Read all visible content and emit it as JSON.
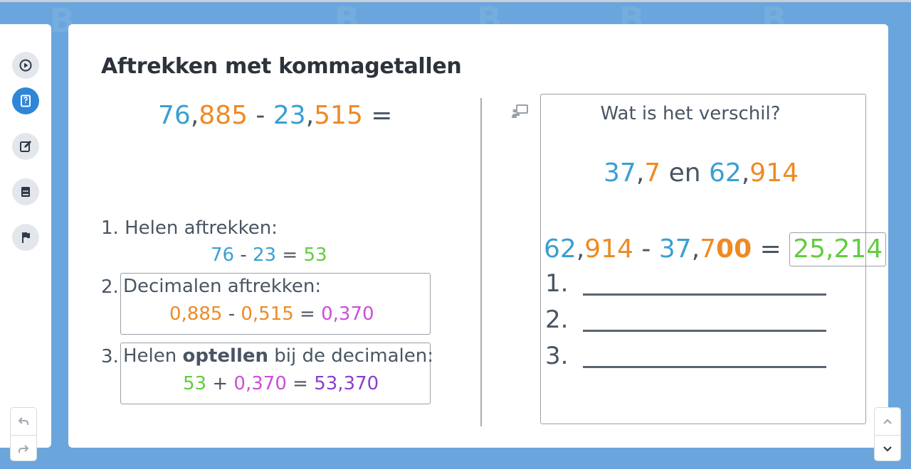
{
  "title": "Aftrekken met kommagetallen",
  "main_equation": {
    "a_int": "76",
    "a_comma": ",",
    "a_dec": "885",
    "minus": " - ",
    "b_int": "23",
    "b_comma": ",",
    "b_dec": "515",
    "equals": " ="
  },
  "steps": [
    {
      "label": "1. Helen aftrekken:",
      "eq": {
        "a": "76",
        "op": " - ",
        "b": "23",
        "eq": " = ",
        "r": "53"
      }
    },
    {
      "num": "2.",
      "label": "Decimalen aftrekken:",
      "eq": {
        "a": "0,885",
        "op": " - ",
        "b": "0,515",
        "eq": " = ",
        "r": "0,370"
      }
    },
    {
      "num": "3.",
      "label_pre": "Helen ",
      "label_bold": "optellen",
      "label_post": " bij de decimalen:",
      "eq": {
        "a": "53",
        "op": " + ",
        "b": "0,370",
        "eq": " = ",
        "r": "53,370"
      }
    }
  ],
  "question": {
    "title": "Wat is het verschil?",
    "n1_int": "37",
    "comma": ",",
    "n1_dec": "7",
    "and": " en ",
    "n2_int": "62",
    "n2_dec": "914",
    "eq": {
      "a_int": "62",
      "a_dec": "914",
      "minus": " - ",
      "b_int": "37",
      "b_dec": "7",
      "b_pad": "00",
      "equals": " = ",
      "answer": "25,214"
    },
    "lines": [
      "1.",
      "2.",
      "3."
    ]
  },
  "icons": {
    "sidebar": [
      "play-circle-icon",
      "question-book-icon",
      "edit-icon",
      "chat-book-icon",
      "flag-icon"
    ],
    "undo": "undo-icon",
    "redo": "redo-icon",
    "scroll_up": "chevron-up-icon",
    "scroll_down": "chevron-down-icon",
    "presenter": "presenter-icon"
  },
  "colors": {
    "blue": "#3a9fd1",
    "orange": "#ee8a24",
    "green": "#62cc3f",
    "magenta": "#cb4fd8",
    "purple": "#8a3fc8",
    "accent": "#2f86d8",
    "background": "#6aa6dd"
  }
}
